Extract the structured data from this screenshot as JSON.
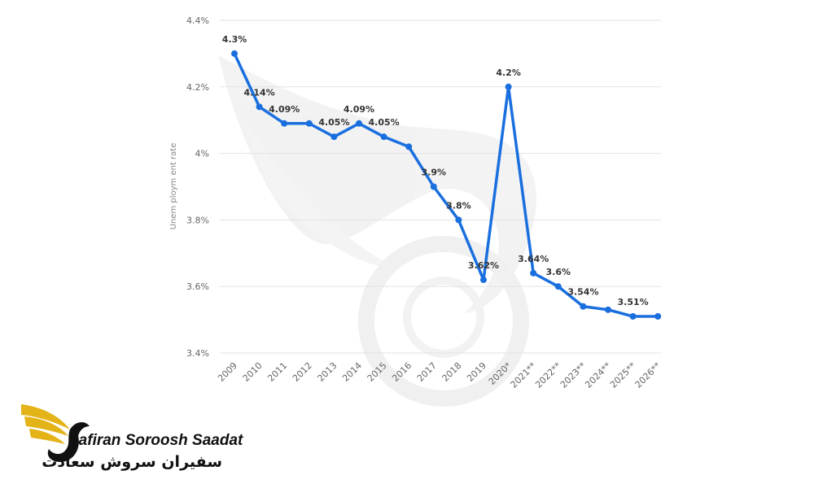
{
  "chart_data": {
    "type": "line",
    "ylabel": "Unem ploym ent rate",
    "ylim": [
      3.4,
      4.4
    ],
    "yticks": [
      3.4,
      3.6,
      3.8,
      4.0,
      4.2,
      4.4
    ],
    "ytick_labels": [
      "3.4%",
      "3.6%",
      "3.8%",
      "4%",
      "4.2%",
      "4.4%"
    ],
    "grid": true,
    "color": "#1a6fdf",
    "categories": [
      "2009",
      "2010",
      "2011",
      "2012",
      "2013",
      "2014",
      "2015",
      "2016",
      "2017",
      "2018",
      "2019",
      "2020*",
      "2021**",
      "2022**",
      "2023**",
      "2024**",
      "2025**",
      "2026**"
    ],
    "values": [
      4.3,
      4.14,
      4.09,
      4.09,
      4.05,
      4.09,
      4.05,
      4.02,
      3.9,
      3.8,
      3.62,
      4.2,
      3.64,
      3.6,
      3.54,
      3.53,
      3.51,
      3.51
    ],
    "data_labels": [
      "4.3%",
      "4.14%",
      "4.09%",
      "",
      "4.05%",
      "4.09%",
      "4.05%",
      "",
      "3.9%",
      "3.8%",
      "3.62%",
      "4.2%",
      "3.64%",
      "3.6%",
      "3.54%",
      "",
      "3.51%",
      ""
    ]
  },
  "brand": {
    "name_en": "Safiran Soroosh Saadat",
    "name_fa": "سفیران سروش سعادت",
    "colors": {
      "gold": "#e3b318",
      "dark": "#111111"
    }
  }
}
